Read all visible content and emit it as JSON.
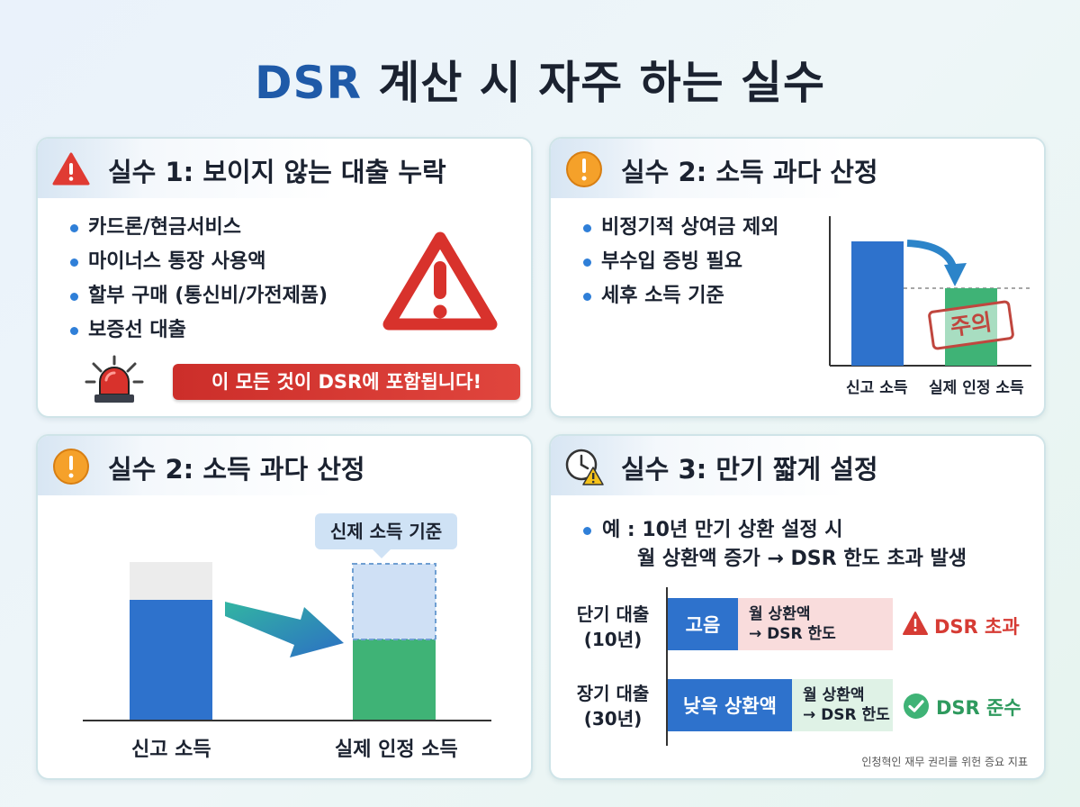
{
  "title": {
    "accent": "DSR",
    "rest": " 계산 시 자주 하는 실수"
  },
  "cards": {
    "card1": {
      "title": "실수 1: 보이지 않는 대출 누락",
      "bullets": [
        "카드론/현금서비스",
        "마이너스 통장 사용액",
        "할부 구매 (통신비/가전제품)",
        "보증선 대출"
      ],
      "banner": "이 모든 것이 DSR에 포함됩니다!"
    },
    "card2": {
      "title": "실수 2: 소득 과다 산정",
      "bullets": [
        "비정기적 상여금 제외",
        "부수입 증빙 필요",
        "세후 소득 기준"
      ],
      "stamp": "주의",
      "chart_labels": [
        "신고 소득",
        "실제 인정 소득"
      ]
    },
    "card3": {
      "title": "실수 2: 소득 과다 산정",
      "callout": "신제 소득 기준",
      "chart_labels": [
        "신고 소득",
        "실제 인정 소득"
      ]
    },
    "card4": {
      "title": "실수 3: 만기 짧게 설정",
      "example_line1": "예 : 10년 만기 상환 설정 시",
      "example_line2": "월 상환액 증가 → DSR 한도 초과 발생",
      "rows": [
        {
          "label": "단기 대출\n(10년)",
          "segment": "고음",
          "sub": "월 상환액\n→ DSR 한도",
          "status": "DSR 초과"
        },
        {
          "label": "장기 대출\n(30년)",
          "segment": "낮윽 상환액",
          "sub": "월 상환액\n→ DSR 한도",
          "status": "DSR 준수"
        }
      ],
      "footnote": "인청혁인 재무 권리를 위헌 증요 지표"
    }
  },
  "colors": {
    "primary_blue": "#2e72cc",
    "title_blue": "#1f5aa8",
    "green": "#3fb376",
    "red": "#d63b34",
    "orange": "#f28c1b"
  }
}
